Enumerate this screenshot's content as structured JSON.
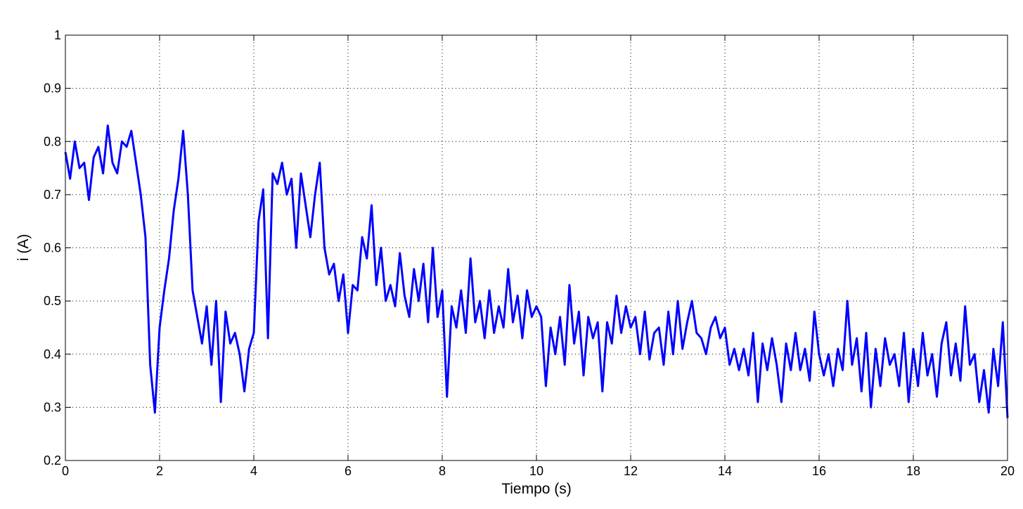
{
  "chart_data": {
    "type": "line",
    "xlabel": "Tiempo (s)",
    "ylabel": "i (A)",
    "xlim": [
      0,
      20
    ],
    "ylim": [
      0.2,
      1
    ],
    "xticks": [
      0,
      2,
      4,
      6,
      8,
      10,
      12,
      14,
      16,
      18,
      20
    ],
    "yticks": [
      0.2,
      0.3,
      0.4,
      0.5,
      0.6,
      0.7,
      0.8,
      0.9,
      1
    ],
    "grid": true,
    "x": [
      0,
      0.1,
      0.2,
      0.3,
      0.4,
      0.5,
      0.6,
      0.7,
      0.8,
      0.9,
      1,
      1.1,
      1.2,
      1.3,
      1.4,
      1.5,
      1.6,
      1.7,
      1.8,
      1.9,
      2,
      2.1,
      2.2,
      2.3,
      2.4,
      2.5,
      2.6,
      2.7,
      2.8,
      2.9,
      3,
      3.1,
      3.2,
      3.3,
      3.4,
      3.5,
      3.6,
      3.7,
      3.8,
      3.9,
      4,
      4.1,
      4.2,
      4.3,
      4.4,
      4.5,
      4.6,
      4.7,
      4.8,
      4.9,
      5,
      5.1,
      5.2,
      5.3,
      5.4,
      5.5,
      5.6,
      5.7,
      5.8,
      5.9,
      6,
      6.1,
      6.2,
      6.3,
      6.4,
      6.5,
      6.6,
      6.7,
      6.8,
      6.9,
      7,
      7.1,
      7.2,
      7.3,
      7.4,
      7.5,
      7.6,
      7.7,
      7.8,
      7.9,
      8,
      8.1,
      8.2,
      8.3,
      8.4,
      8.5,
      8.6,
      8.7,
      8.8,
      8.9,
      9,
      9.1,
      9.2,
      9.3,
      9.4,
      9.5,
      9.6,
      9.7,
      9.8,
      9.9,
      10,
      10.1,
      10.2,
      10.3,
      10.4,
      10.5,
      10.6,
      10.7,
      10.8,
      10.9,
      11,
      11.1,
      11.2,
      11.3,
      11.4,
      11.5,
      11.6,
      11.7,
      11.8,
      11.9,
      12,
      12.1,
      12.2,
      12.3,
      12.4,
      12.5,
      12.6,
      12.7,
      12.8,
      12.9,
      13,
      13.1,
      13.2,
      13.3,
      13.4,
      13.5,
      13.6,
      13.7,
      13.8,
      13.9,
      14,
      14.1,
      14.2,
      14.3,
      14.4,
      14.5,
      14.6,
      14.7,
      14.8,
      14.9,
      15,
      15.1,
      15.2,
      15.3,
      15.4,
      15.5,
      15.6,
      15.7,
      15.8,
      15.9,
      16,
      16.1,
      16.2,
      16.3,
      16.4,
      16.5,
      16.6,
      16.7,
      16.8,
      16.9,
      17,
      17.1,
      17.2,
      17.3,
      17.4,
      17.5,
      17.6,
      17.7,
      17.8,
      17.9,
      18,
      18.1,
      18.2,
      18.3,
      18.4,
      18.5,
      18.6,
      18.7,
      18.8,
      18.9,
      19,
      19.1,
      19.2,
      19.3,
      19.4,
      19.5,
      19.6,
      19.7,
      19.8,
      19.9,
      20
    ],
    "series": [
      {
        "color": "#0000ff",
        "values": [
          0.78,
          0.73,
          0.8,
          0.75,
          0.76,
          0.69,
          0.77,
          0.79,
          0.74,
          0.83,
          0.76,
          0.74,
          0.8,
          0.79,
          0.82,
          0.76,
          0.7,
          0.62,
          0.38,
          0.29,
          0.45,
          0.52,
          0.58,
          0.67,
          0.73,
          0.82,
          0.7,
          0.52,
          0.47,
          0.42,
          0.49,
          0.38,
          0.5,
          0.31,
          0.48,
          0.42,
          0.44,
          0.4,
          0.33,
          0.41,
          0.44,
          0.65,
          0.71,
          0.43,
          0.74,
          0.72,
          0.76,
          0.7,
          0.73,
          0.6,
          0.74,
          0.68,
          0.62,
          0.7,
          0.76,
          0.6,
          0.55,
          0.57,
          0.5,
          0.55,
          0.44,
          0.53,
          0.52,
          0.62,
          0.58,
          0.68,
          0.53,
          0.6,
          0.5,
          0.53,
          0.49,
          0.59,
          0.51,
          0.47,
          0.56,
          0.5,
          0.57,
          0.46,
          0.6,
          0.47,
          0.52,
          0.32,
          0.49,
          0.45,
          0.52,
          0.44,
          0.58,
          0.46,
          0.5,
          0.43,
          0.52,
          0.44,
          0.49,
          0.45,
          0.56,
          0.46,
          0.51,
          0.43,
          0.52,
          0.47,
          0.49,
          0.47,
          0.34,
          0.45,
          0.4,
          0.47,
          0.38,
          0.53,
          0.42,
          0.48,
          0.36,
          0.47,
          0.43,
          0.46,
          0.33,
          0.46,
          0.42,
          0.51,
          0.44,
          0.49,
          0.45,
          0.47,
          0.4,
          0.48,
          0.39,
          0.44,
          0.45,
          0.38,
          0.48,
          0.4,
          0.5,
          0.41,
          0.46,
          0.5,
          0.44,
          0.43,
          0.4,
          0.45,
          0.47,
          0.43,
          0.45,
          0.38,
          0.41,
          0.37,
          0.41,
          0.36,
          0.44,
          0.31,
          0.42,
          0.37,
          0.43,
          0.38,
          0.31,
          0.42,
          0.37,
          0.44,
          0.37,
          0.41,
          0.35,
          0.48,
          0.4,
          0.36,
          0.4,
          0.34,
          0.41,
          0.37,
          0.5,
          0.38,
          0.43,
          0.33,
          0.44,
          0.3,
          0.41,
          0.34,
          0.43,
          0.38,
          0.4,
          0.34,
          0.44,
          0.31,
          0.41,
          0.34,
          0.44,
          0.36,
          0.4,
          0.32,
          0.42,
          0.46,
          0.36,
          0.42,
          0.35,
          0.49,
          0.38,
          0.4,
          0.31,
          0.37,
          0.29,
          0.41,
          0.34,
          0.46,
          0.28
        ]
      }
    ]
  }
}
